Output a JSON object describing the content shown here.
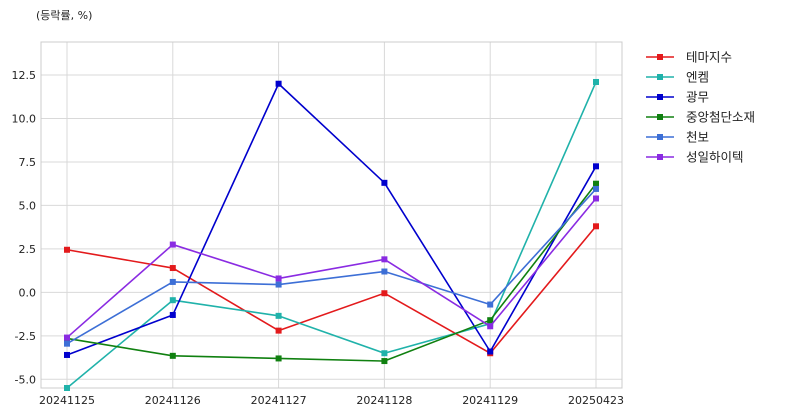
{
  "chart_data": {
    "type": "line",
    "title": "",
    "unit_label": "(등락률, %)",
    "xlabel": "",
    "ylabel": "",
    "categories": [
      "20241125",
      "20241126",
      "20241127",
      "20241128",
      "20241129",
      "20250423"
    ],
    "ylim": [
      -5.5,
      14.4
    ],
    "yticks": [
      -5.0,
      -2.5,
      0.0,
      2.5,
      5.0,
      7.5,
      10.0,
      12.5
    ],
    "ytick_labels": [
      "-5.0",
      "-2.5",
      "0.0",
      "2.5",
      "5.0",
      "7.5",
      "10.0",
      "12.5"
    ],
    "grid": true,
    "legend_position": "outside-right-top",
    "series": [
      {
        "name": "테마지수",
        "color": "#e31a1c",
        "values": [
          2.45,
          1.4,
          -2.2,
          -0.05,
          -3.5,
          3.8
        ]
      },
      {
        "name": "엔켐",
        "color": "#20b2aa",
        "values": [
          -5.5,
          -0.45,
          -1.35,
          -3.5,
          -1.8,
          12.1
        ]
      },
      {
        "name": "광무",
        "color": "#0000cd",
        "values": [
          -3.6,
          -1.3,
          12.0,
          6.3,
          -3.4,
          7.25
        ]
      },
      {
        "name": "중앙첨단소재",
        "color": "#108010",
        "values": [
          -2.65,
          -3.65,
          -3.8,
          -3.95,
          -1.6,
          6.25
        ]
      },
      {
        "name": "천보",
        "color": "#3d6fd6",
        "values": [
          -2.95,
          0.6,
          0.45,
          1.2,
          -0.7,
          5.95
        ]
      },
      {
        "name": "성일하이텍",
        "color": "#8a2be2",
        "values": [
          -2.6,
          2.75,
          0.8,
          1.9,
          -1.95,
          5.4
        ]
      }
    ]
  }
}
